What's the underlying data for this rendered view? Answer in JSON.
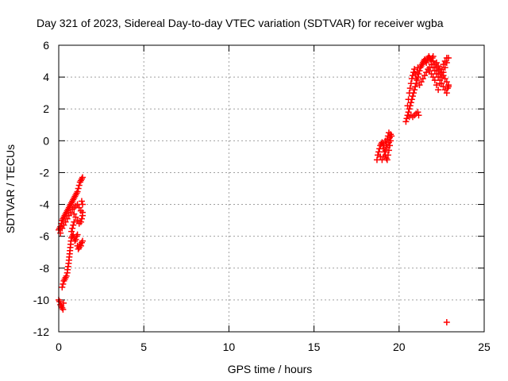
{
  "chart_data": {
    "type": "scatter",
    "title": "Day 321 of 2023, Sidereal Day-to-day VTEC variation (SDTVAR) for receiver wgba",
    "xlabel": "GPS time / hours",
    "ylabel": "SDTVAR / TECUs",
    "xlim": [
      0,
      25
    ],
    "ylim": [
      -12,
      6
    ],
    "xticks": [
      0,
      5,
      10,
      15,
      20,
      25
    ],
    "yticks": [
      -12,
      -10,
      -8,
      -6,
      -4,
      -2,
      0,
      2,
      4,
      6
    ],
    "grid": true,
    "marker": "+",
    "color": "#ff0000",
    "series": [
      {
        "name": "SDTVAR",
        "points": [
          [
            0.0,
            -10.0
          ],
          [
            0.05,
            -10.1
          ],
          [
            0.1,
            -10.3
          ],
          [
            0.15,
            -10.4
          ],
          [
            0.2,
            -10.5
          ],
          [
            0.25,
            -10.6
          ],
          [
            0.28,
            -10.2
          ],
          [
            0.0,
            -5.6
          ],
          [
            0.05,
            -5.5
          ],
          [
            0.1,
            -5.4
          ],
          [
            0.15,
            -5.2
          ],
          [
            0.2,
            -5.0
          ],
          [
            0.25,
            -4.9
          ],
          [
            0.3,
            -4.8
          ],
          [
            0.35,
            -4.7
          ],
          [
            0.4,
            -4.6
          ],
          [
            0.45,
            -4.5
          ],
          [
            0.5,
            -4.4
          ],
          [
            0.55,
            -4.3
          ],
          [
            0.6,
            -4.2
          ],
          [
            0.65,
            -4.1
          ],
          [
            0.7,
            -4.0
          ],
          [
            0.75,
            -3.9
          ],
          [
            0.8,
            -3.8
          ],
          [
            0.85,
            -3.7
          ],
          [
            0.9,
            -3.6
          ],
          [
            0.95,
            -3.5
          ],
          [
            1.0,
            -3.4
          ],
          [
            1.05,
            -3.3
          ],
          [
            1.1,
            -3.2
          ],
          [
            1.15,
            -3.0
          ],
          [
            1.2,
            -2.8
          ],
          [
            1.25,
            -2.6
          ],
          [
            1.3,
            -2.5
          ],
          [
            1.35,
            -2.4
          ],
          [
            1.4,
            -2.3
          ],
          [
            0.1,
            -5.8
          ],
          [
            0.2,
            -5.5
          ],
          [
            0.3,
            -5.3
          ],
          [
            0.4,
            -5.1
          ],
          [
            0.5,
            -4.9
          ],
          [
            0.6,
            -4.7
          ],
          [
            0.7,
            -4.5
          ],
          [
            0.8,
            -4.3
          ],
          [
            0.9,
            -4.2
          ],
          [
            1.0,
            -4.1
          ],
          [
            1.1,
            -4.0
          ],
          [
            1.2,
            -4.2
          ],
          [
            1.3,
            -4.4
          ],
          [
            1.4,
            -4.5
          ],
          [
            0.9,
            -4.6
          ],
          [
            1.0,
            -4.8
          ],
          [
            1.1,
            -5.0
          ],
          [
            1.2,
            -5.2
          ],
          [
            1.3,
            -5.1
          ],
          [
            1.35,
            -4.9
          ],
          [
            1.4,
            -4.7
          ],
          [
            1.4,
            -4.0
          ],
          [
            1.35,
            -3.8
          ],
          [
            0.2,
            -9.2
          ],
          [
            0.25,
            -9.0
          ],
          [
            0.3,
            -8.8
          ],
          [
            0.35,
            -8.7
          ],
          [
            0.4,
            -8.6
          ],
          [
            0.45,
            -8.5
          ],
          [
            0.5,
            -8.3
          ],
          [
            0.52,
            -8.1
          ],
          [
            0.55,
            -7.9
          ],
          [
            0.58,
            -7.7
          ],
          [
            0.6,
            -7.5
          ],
          [
            0.62,
            -7.3
          ],
          [
            0.64,
            -7.1
          ],
          [
            0.66,
            -6.9
          ],
          [
            0.68,
            -6.7
          ],
          [
            0.7,
            -6.5
          ],
          [
            0.72,
            -6.3
          ],
          [
            0.75,
            -6.1
          ],
          [
            0.8,
            -6.0
          ],
          [
            0.85,
            -5.9
          ],
          [
            0.9,
            -6.1
          ],
          [
            0.95,
            -6.3
          ],
          [
            1.0,
            -6.2
          ],
          [
            1.05,
            -6.0
          ],
          [
            1.1,
            -5.9
          ],
          [
            0.75,
            -5.7
          ],
          [
            0.8,
            -5.5
          ],
          [
            0.85,
            -5.3
          ],
          [
            0.9,
            -5.1
          ],
          [
            1.1,
            -6.6
          ],
          [
            1.15,
            -6.8
          ],
          [
            1.2,
            -6.7
          ],
          [
            1.25,
            -6.5
          ],
          [
            1.3,
            -6.6
          ],
          [
            1.35,
            -6.4
          ],
          [
            1.4,
            -6.3
          ],
          [
            18.7,
            -1.2
          ],
          [
            18.75,
            -0.9
          ],
          [
            18.8,
            -0.7
          ],
          [
            18.85,
            -0.5
          ],
          [
            18.9,
            -0.3
          ],
          [
            18.95,
            -0.2
          ],
          [
            19.0,
            -0.1
          ],
          [
            19.05,
            -0.3
          ],
          [
            19.1,
            -0.5
          ],
          [
            19.15,
            -0.7
          ],
          [
            19.2,
            -0.9
          ],
          [
            19.25,
            -1.1
          ],
          [
            19.3,
            -1.2
          ],
          [
            19.35,
            -0.9
          ],
          [
            19.4,
            -0.6
          ],
          [
            19.45,
            -0.3
          ],
          [
            19.5,
            0.0
          ],
          [
            19.55,
            0.3
          ],
          [
            19.0,
            -1.2
          ],
          [
            19.1,
            -1.0
          ],
          [
            19.2,
            -0.6
          ],
          [
            19.3,
            -0.4
          ],
          [
            19.4,
            -0.1
          ],
          [
            19.45,
            0.2
          ],
          [
            19.5,
            0.4
          ],
          [
            19.2,
            0.0
          ],
          [
            19.3,
            0.1
          ],
          [
            19.35,
            0.3
          ],
          [
            19.4,
            0.5
          ],
          [
            18.9,
            -1.0
          ],
          [
            19.1,
            -0.2
          ],
          [
            19.25,
            -0.2
          ],
          [
            20.4,
            1.2
          ],
          [
            20.45,
            1.4
          ],
          [
            20.5,
            1.6
          ],
          [
            20.55,
            1.8
          ],
          [
            20.6,
            2.0
          ],
          [
            20.65,
            2.2
          ],
          [
            20.7,
            2.4
          ],
          [
            20.75,
            2.6
          ],
          [
            20.8,
            2.8
          ],
          [
            20.85,
            3.0
          ],
          [
            20.9,
            3.2
          ],
          [
            20.95,
            3.4
          ],
          [
            21.0,
            3.6
          ],
          [
            21.05,
            3.8
          ],
          [
            21.1,
            4.0
          ],
          [
            21.15,
            4.2
          ],
          [
            21.2,
            4.4
          ],
          [
            21.25,
            4.6
          ],
          [
            21.3,
            4.7
          ],
          [
            21.35,
            4.8
          ],
          [
            21.4,
            4.9
          ],
          [
            21.45,
            5.0
          ],
          [
            21.5,
            5.1
          ],
          [
            21.55,
            5.0
          ],
          [
            21.6,
            4.9
          ],
          [
            21.65,
            5.1
          ],
          [
            21.7,
            5.2
          ],
          [
            21.75,
            5.3
          ],
          [
            21.8,
            5.2
          ],
          [
            21.85,
            5.1
          ],
          [
            21.9,
            5.0
          ],
          [
            21.95,
            5.2
          ],
          [
            22.0,
            5.3
          ],
          [
            20.5,
            2.2
          ],
          [
            20.55,
            2.6
          ],
          [
            20.6,
            3.0
          ],
          [
            20.65,
            3.3
          ],
          [
            20.7,
            3.6
          ],
          [
            20.75,
            3.9
          ],
          [
            20.8,
            4.1
          ],
          [
            20.85,
            4.3
          ],
          [
            20.9,
            4.5
          ],
          [
            20.95,
            4.2
          ],
          [
            21.0,
            3.9
          ],
          [
            21.05,
            4.3
          ],
          [
            21.1,
            4.6
          ],
          [
            20.6,
            1.5
          ],
          [
            20.7,
            1.6
          ],
          [
            20.8,
            1.5
          ],
          [
            20.9,
            1.6
          ],
          [
            21.0,
            1.7
          ],
          [
            21.1,
            1.8
          ],
          [
            21.15,
            1.6
          ],
          [
            21.2,
            3.5
          ],
          [
            21.3,
            3.7
          ],
          [
            21.4,
            3.9
          ],
          [
            21.5,
            4.1
          ],
          [
            21.6,
            4.3
          ],
          [
            21.7,
            4.5
          ],
          [
            21.8,
            4.4
          ],
          [
            21.9,
            4.2
          ],
          [
            22.0,
            4.0
          ],
          [
            22.1,
            3.8
          ],
          [
            22.2,
            3.5
          ],
          [
            22.3,
            3.2
          ],
          [
            22.4,
            3.6
          ],
          [
            22.5,
            4.0
          ],
          [
            22.6,
            4.3
          ],
          [
            22.7,
            4.6
          ],
          [
            22.8,
            4.9
          ],
          [
            22.9,
            5.2
          ],
          [
            21.8,
            4.6
          ],
          [
            21.9,
            4.8
          ],
          [
            22.0,
            5.0
          ],
          [
            22.1,
            4.8
          ],
          [
            22.2,
            4.6
          ],
          [
            22.3,
            4.4
          ],
          [
            22.4,
            4.2
          ],
          [
            22.5,
            4.5
          ],
          [
            22.6,
            4.8
          ],
          [
            22.7,
            5.0
          ],
          [
            22.8,
            5.2
          ],
          [
            22.0,
            4.6
          ],
          [
            22.1,
            4.4
          ],
          [
            22.2,
            4.2
          ],
          [
            22.3,
            4.0
          ],
          [
            22.4,
            3.8
          ],
          [
            22.5,
            3.6
          ],
          [
            22.6,
            3.4
          ],
          [
            22.7,
            3.2
          ],
          [
            22.8,
            3.0
          ],
          [
            22.85,
            3.3
          ],
          [
            22.9,
            3.5
          ],
          [
            22.2,
            4.9
          ],
          [
            22.3,
            4.7
          ],
          [
            22.4,
            4.5
          ],
          [
            22.5,
            4.3
          ],
          [
            22.6,
            4.1
          ],
          [
            22.7,
            3.9
          ],
          [
            22.8,
            3.7
          ],
          [
            22.9,
            3.4
          ],
          [
            22.8,
            -11.4
          ]
        ]
      }
    ]
  }
}
